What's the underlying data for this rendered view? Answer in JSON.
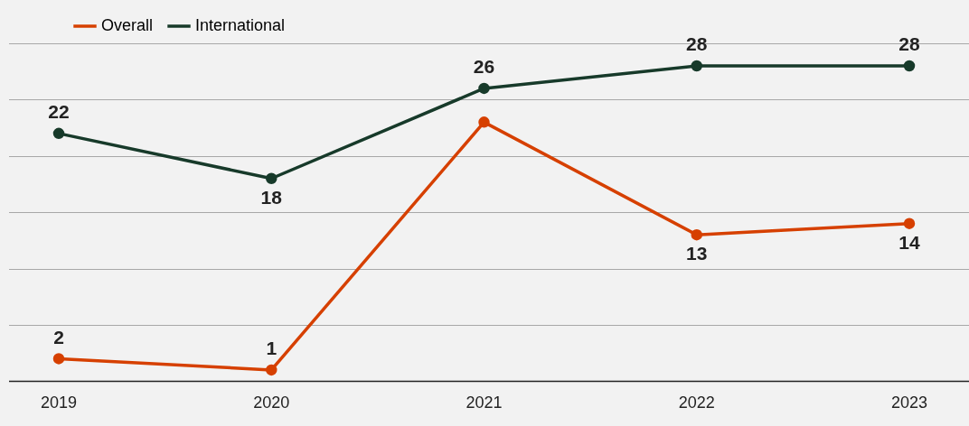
{
  "chart_data": {
    "type": "line",
    "categories": [
      "2019",
      "2020",
      "2021",
      "2022",
      "2023"
    ],
    "series": [
      {
        "name": "Overall",
        "color": "#d64000",
        "values": [
          2,
          1,
          23,
          13,
          14
        ],
        "value_labels": [
          "2",
          "1",
          null,
          "13",
          "14"
        ]
      },
      {
        "name": "International",
        "color": "#173a2a",
        "values": [
          22,
          18,
          26,
          28,
          28
        ],
        "value_labels": [
          "22",
          "18",
          "26",
          "28",
          "28"
        ]
      }
    ],
    "ylim": [
      0,
      30
    ],
    "yticks": [
      {
        "value": 0,
        "label": null
      },
      {
        "value": 5,
        "label": null
      },
      {
        "value": 10,
        "label": null
      },
      {
        "value": 15,
        "label": null
      },
      {
        "value": 20,
        "label": null
      },
      {
        "value": 25,
        "label": null
      },
      {
        "value": 30,
        "label": null
      }
    ],
    "tick_labels": "x",
    "grid": "y",
    "legend": "top left",
    "marker": "circle",
    "line_style": "solid"
  }
}
